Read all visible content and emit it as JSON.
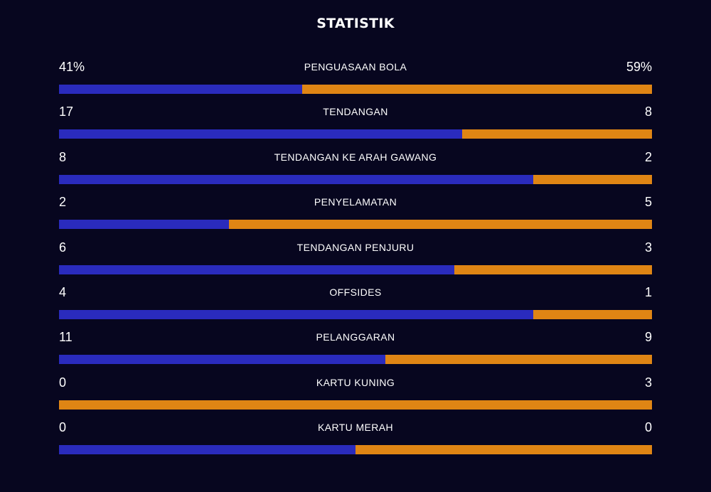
{
  "title": "STATISTIK",
  "colors": {
    "home": "#2a2bbd",
    "away": "#df8514",
    "background": "#07061f"
  },
  "stats": [
    {
      "label": "PENGUASAAN BOLA",
      "home": "41%",
      "away": "59%",
      "home_share": 0.41
    },
    {
      "label": "TENDANGAN",
      "home": "17",
      "away": "8",
      "home_share": 0.68
    },
    {
      "label": "TENDANGAN KE ARAH GAWANG",
      "home": "8",
      "away": "2",
      "home_share": 0.8
    },
    {
      "label": "PENYELAMATAN",
      "home": "2",
      "away": "5",
      "home_share": 0.286
    },
    {
      "label": "TENDANGAN PENJURU",
      "home": "6",
      "away": "3",
      "home_share": 0.667
    },
    {
      "label": "OFFSIDES",
      "home": "4",
      "away": "1",
      "home_share": 0.8
    },
    {
      "label": "PELANGGARAN",
      "home": "11",
      "away": "9",
      "home_share": 0.55
    },
    {
      "label": "KARTU KUNING",
      "home": "0",
      "away": "3",
      "home_share": 0
    },
    {
      "label": "KARTU MERAH",
      "home": "0",
      "away": "0",
      "home_share": 0.5
    }
  ]
}
